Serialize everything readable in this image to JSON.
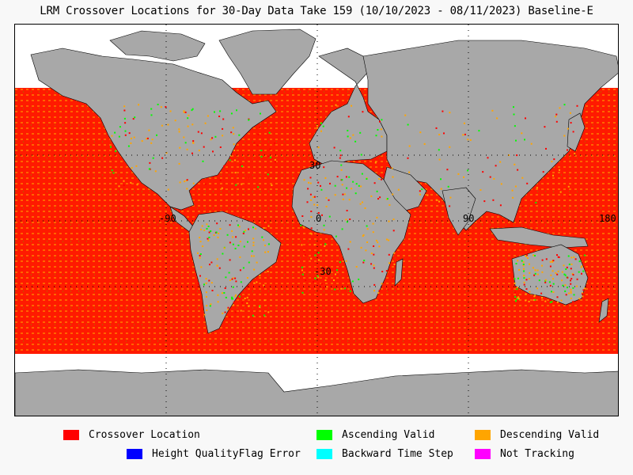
{
  "title": "LRM Crossover Locations for 30-Day Data Take 159 (10/10/2023 - 08/11/2023) Baseline-E",
  "map": {
    "projection": "equirectangular",
    "lon_range": [
      -180,
      180
    ],
    "lat_range": [
      -90,
      90
    ],
    "grid_lines": "dotted",
    "ocean_data_lat_range": [
      -66,
      66
    ],
    "grid_labels": {
      "latitudes": [
        "30",
        "-30"
      ],
      "longitudes": [
        "-90",
        "0",
        "90",
        "180"
      ]
    },
    "colors": {
      "land": "#a9a9a9",
      "ocean": "#ffffff",
      "crossover": "#ff0000",
      "ascending": "#00ff00",
      "descending": "#ffa500"
    }
  },
  "legend": [
    {
      "label": "Crossover Location",
      "color": "#ff0000"
    },
    {
      "label": "Ascending Valid",
      "color": "#00ff00"
    },
    {
      "label": "Descending Valid",
      "color": "#ffa500"
    },
    {
      "label": "Height QualityFlag Error",
      "color": "#0000ff"
    },
    {
      "label": "Backward Time Step",
      "color": "#00ffff"
    },
    {
      "label": "Not Tracking",
      "color": "#ff00ff"
    }
  ]
}
